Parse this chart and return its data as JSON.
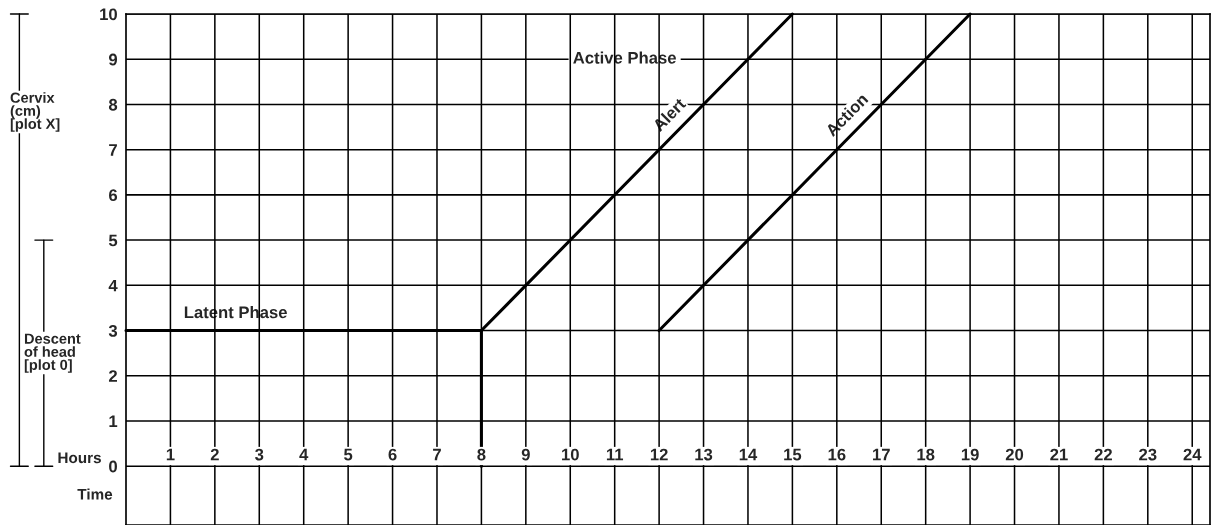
{
  "chart_data": {
    "type": "line",
    "xlim": [
      0,
      24.4
    ],
    "ylim": [
      -1.3,
      10
    ],
    "xticks": [
      1,
      2,
      3,
      4,
      5,
      6,
      7,
      8,
      9,
      10,
      11,
      12,
      13,
      14,
      15,
      16,
      17,
      18,
      19,
      20,
      21,
      22,
      23,
      24
    ],
    "yticks": [
      0,
      1,
      2,
      3,
      4,
      5,
      6,
      7,
      8,
      9,
      10
    ],
    "series": [
      {
        "name": "Latent Phase",
        "color": "#000000",
        "x": [
          0,
          8,
          8
        ],
        "values": [
          3,
          3,
          0
        ]
      },
      {
        "name": "Alert",
        "color": "#000000",
        "x": [
          8,
          15
        ],
        "values": [
          3,
          10
        ]
      },
      {
        "name": "Action",
        "color": "#000000",
        "x": [
          12,
          19
        ],
        "values": [
          3,
          10
        ]
      }
    ],
    "annotations": [
      "Active Phase",
      "Cervix\n(cm)\n[plot X]",
      "Descent\nof head\n[plot 0]",
      "Hours",
      "Time"
    ],
    "grid": true,
    "legend": false,
    "marker": "none",
    "line_style": "solid"
  }
}
